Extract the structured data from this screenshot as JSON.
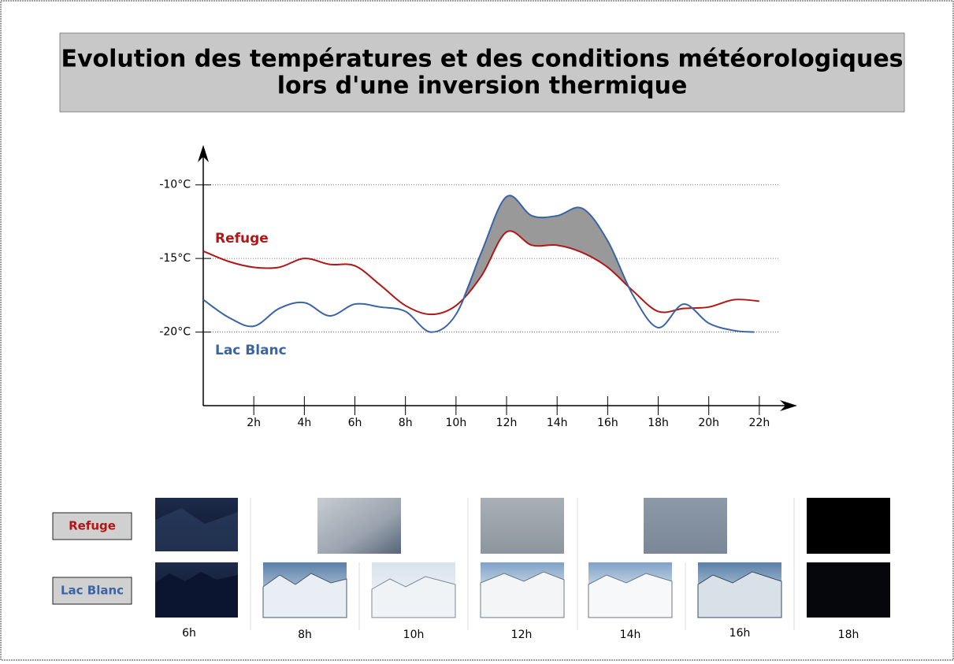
{
  "chart_data": {
    "type": "line",
    "title": [
      "Evolution des températures et des conditions météorologiques",
      "lors d'une inversion thermique"
    ],
    "xlim": [
      0,
      23.5
    ],
    "ylim": [
      -25,
      -7.5
    ],
    "xticks": [
      {
        "value": 2,
        "label": "2h"
      },
      {
        "value": 4,
        "label": "4h"
      },
      {
        "value": 6,
        "label": "6h"
      },
      {
        "value": 8,
        "label": "8h"
      },
      {
        "value": 10,
        "label": "10h"
      },
      {
        "value": 12,
        "label": "12h"
      },
      {
        "value": 14,
        "label": "14h"
      },
      {
        "value": 16,
        "label": "16h"
      },
      {
        "value": 18,
        "label": "18h"
      },
      {
        "value": 20,
        "label": "20h"
      },
      {
        "value": 22,
        "label": "22h"
      }
    ],
    "yticks": [
      {
        "value": -10,
        "label": "-10°C"
      },
      {
        "value": -15,
        "label": "-15°C"
      },
      {
        "value": -20,
        "label": "-20°C"
      }
    ],
    "grid": true,
    "series": [
      {
        "name": "Refuge",
        "color": "#b01818",
        "x": [
          0,
          1,
          2,
          3,
          4,
          5,
          6,
          7,
          8,
          9,
          10,
          11,
          12,
          13,
          14,
          15,
          16,
          17,
          18,
          19,
          20,
          21,
          22
        ],
        "values": [
          -14.5,
          -15.2,
          -15.6,
          -15.6,
          -15.0,
          -15.4,
          -15.5,
          -16.8,
          -18.2,
          -18.8,
          -18.2,
          -16.2,
          -13.2,
          -14.1,
          -14.1,
          -14.6,
          -15.6,
          -17.2,
          -18.6,
          -18.4,
          -18.3,
          -17.8,
          -17.9
        ]
      },
      {
        "name": "Lac Blanc",
        "color": "#3a64a8",
        "x": [
          0,
          1,
          2,
          3,
          4,
          5,
          6,
          7,
          8,
          9,
          10,
          11,
          12,
          13,
          14,
          15,
          16,
          17,
          18,
          19,
          20,
          21,
          21.8
        ],
        "values": [
          -17.8,
          -19.0,
          -19.6,
          -18.4,
          -18.0,
          -18.9,
          -18.1,
          -18.3,
          -18.6,
          -20.0,
          -18.8,
          -14.6,
          -10.8,
          -12.1,
          -12.1,
          -11.6,
          -13.8,
          -17.5,
          -19.7,
          -18.1,
          -19.4,
          -19.9,
          -20.0
        ]
      }
    ]
  },
  "photos": {
    "refuge_label": "Refuge",
    "lac_label": "Lac Blanc",
    "times": [
      "6h",
      "8h",
      "10h",
      "12h",
      "14h",
      "16h",
      "18h"
    ]
  }
}
